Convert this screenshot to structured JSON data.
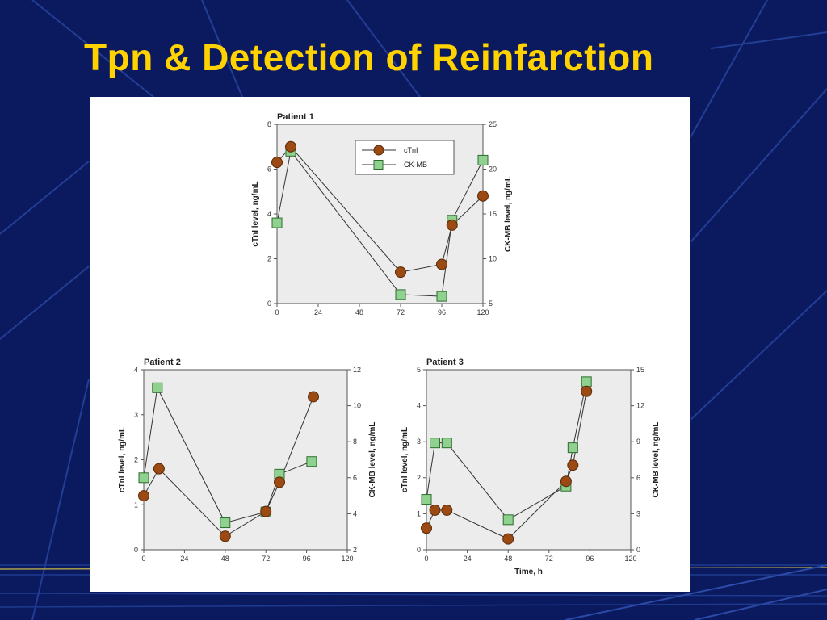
{
  "slide": {
    "title": "Tpn & Detection of Reinfarction"
  },
  "colors": {
    "background": "#0b1a5e",
    "title": "#ffd200",
    "ctni_marker": "#9a4a12",
    "ckmb_marker": "#8fd28f",
    "plot_bg": "#ececec"
  },
  "chart_data": [
    {
      "type": "line",
      "title": "Patient 1",
      "xlabel": "",
      "ylabel": "cTnI level, ng/mL",
      "y2label": "CK-MB level, ng/mL",
      "xlim": [
        0,
        120
      ],
      "ylim": [
        0,
        8
      ],
      "y2lim": [
        5,
        25
      ],
      "xticks": [
        "0",
        "24",
        "48",
        "72",
        "96",
        "120"
      ],
      "yticks": [
        "0",
        "2",
        "4",
        "6",
        "8"
      ],
      "y2ticks": [
        "5",
        "10",
        "15",
        "20",
        "25"
      ],
      "legend": {
        "position": "top-right",
        "entries": [
          "cTnI",
          "CK-MB"
        ]
      },
      "series": [
        {
          "name": "cTnI",
          "axis": "left",
          "x": [
            0,
            8,
            72,
            96,
            102,
            120
          ],
          "y": [
            6.3,
            7.0,
            1.4,
            1.75,
            3.5,
            4.8
          ]
        },
        {
          "name": "CK-MB",
          "axis": "right",
          "x": [
            0,
            8,
            72,
            96,
            102,
            120
          ],
          "y": [
            14,
            22,
            6,
            5.8,
            14.3,
            21
          ]
        }
      ]
    },
    {
      "type": "line",
      "title": "Patient 2",
      "xlabel": "",
      "ylabel": "cTnI level, ng/mL",
      "y2label": "CK-MB level, ng/mL",
      "xlim": [
        0,
        120
      ],
      "ylim": [
        0,
        4
      ],
      "y2lim": [
        2,
        12
      ],
      "xticks": [
        "0",
        "24",
        "48",
        "72",
        "96",
        "120"
      ],
      "yticks": [
        "0",
        "1",
        "2",
        "3",
        "4"
      ],
      "y2ticks": [
        "2",
        "4",
        "6",
        "8",
        "10",
        "12"
      ],
      "series": [
        {
          "name": "cTnI",
          "axis": "left",
          "x": [
            0,
            9,
            48,
            72,
            80,
            100
          ],
          "y": [
            1.2,
            1.8,
            0.3,
            0.85,
            1.5,
            3.4
          ]
        },
        {
          "name": "CK-MB",
          "axis": "right",
          "x": [
            0,
            8,
            48,
            72,
            80,
            99
          ],
          "y": [
            6.0,
            11.0,
            3.5,
            4.1,
            6.2,
            6.9
          ]
        }
      ]
    },
    {
      "type": "line",
      "title": "Patient 3",
      "xlabel": "Time, h",
      "ylabel": "cTnI level, ng/mL",
      "y2label": "CK-MB level, ng/mL",
      "xlim": [
        0,
        120
      ],
      "ylim": [
        0,
        5
      ],
      "y2lim": [
        0,
        15
      ],
      "xticks": [
        "0",
        "24",
        "48",
        "72",
        "96",
        "120"
      ],
      "yticks": [
        "0",
        "1",
        "2",
        "3",
        "4",
        "5"
      ],
      "y2ticks": [
        "0",
        "3",
        "6",
        "9",
        "12",
        "15"
      ],
      "series": [
        {
          "name": "cTnI",
          "axis": "left",
          "x": [
            0,
            5,
            12,
            48,
            82,
            86,
            94
          ],
          "y": [
            0.6,
            1.1,
            1.1,
            0.3,
            1.9,
            2.35,
            4.4
          ]
        },
        {
          "name": "CK-MB",
          "axis": "right",
          "x": [
            0,
            5,
            12,
            48,
            82,
            86,
            94
          ],
          "y": [
            4.2,
            8.9,
            8.9,
            2.5,
            5.3,
            8.5,
            14.0
          ]
        }
      ]
    }
  ]
}
